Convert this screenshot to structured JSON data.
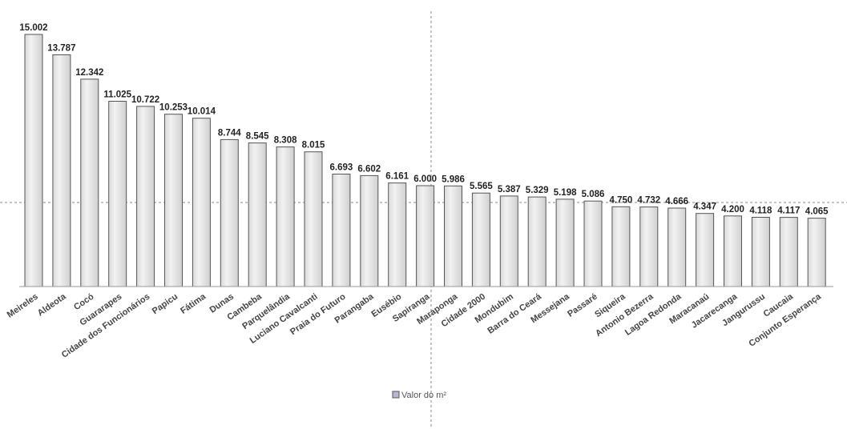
{
  "chart_data": {
    "type": "bar",
    "categories": [
      "Meireles",
      "Aldeota",
      "Cocó",
      "Guararapes",
      "Cidade dos Funcionários",
      "Papicu",
      "Fátima",
      "Dunas",
      "Cambeba",
      "Parquelândia",
      "Luciano Cavalcanti",
      "Praia do Futuro",
      "Parangaba",
      "Eusébio",
      "Sapiranga",
      "Maraponga",
      "Cidade 2000",
      "Mondubim",
      "Barra do Ceará",
      "Messejana",
      "Passaré",
      "Siqueira",
      "Antonio Bezerra",
      "Lagoa Redonda",
      "Maracanaú",
      "Jacarecanga",
      "Jangurussu",
      "Caucaia",
      "Conjunto Esperança"
    ],
    "value_labels": [
      "15.002",
      "13.787",
      "12.342",
      "11.025",
      "10.722",
      "10.253",
      "10.014",
      "8.744",
      "8.545",
      "8.308",
      "8.015",
      "6.693",
      "6.602",
      "6.161",
      "6.000",
      "5.986",
      "5.565",
      "5.387",
      "5.329",
      "5.198",
      "5.086",
      "4.750",
      "4.732",
      "4.666",
      "4.347",
      "4.200",
      "4.118",
      "4.117",
      "4.065"
    ],
    "series": [
      {
        "name": "Valor do m²",
        "values": [
          15002,
          13787,
          12342,
          11025,
          10722,
          10253,
          10014,
          8744,
          8545,
          8308,
          8015,
          6693,
          6602,
          6161,
          6000,
          5986,
          5565,
          5387,
          5329,
          5198,
          5086,
          4750,
          4732,
          4666,
          4347,
          4200,
          4118,
          4117,
          4065
        ]
      }
    ],
    "ylim": [
      0,
      15002
    ],
    "grid": false,
    "legend": "bottom-center"
  },
  "legend": {
    "label": "Valor do m²"
  },
  "colors": {
    "bar_fill_light": "#f2f2f2",
    "bar_fill_dark": "#d4d4d4",
    "bar_stroke": "#555555",
    "legend_swatch": "#b7b7d6"
  }
}
